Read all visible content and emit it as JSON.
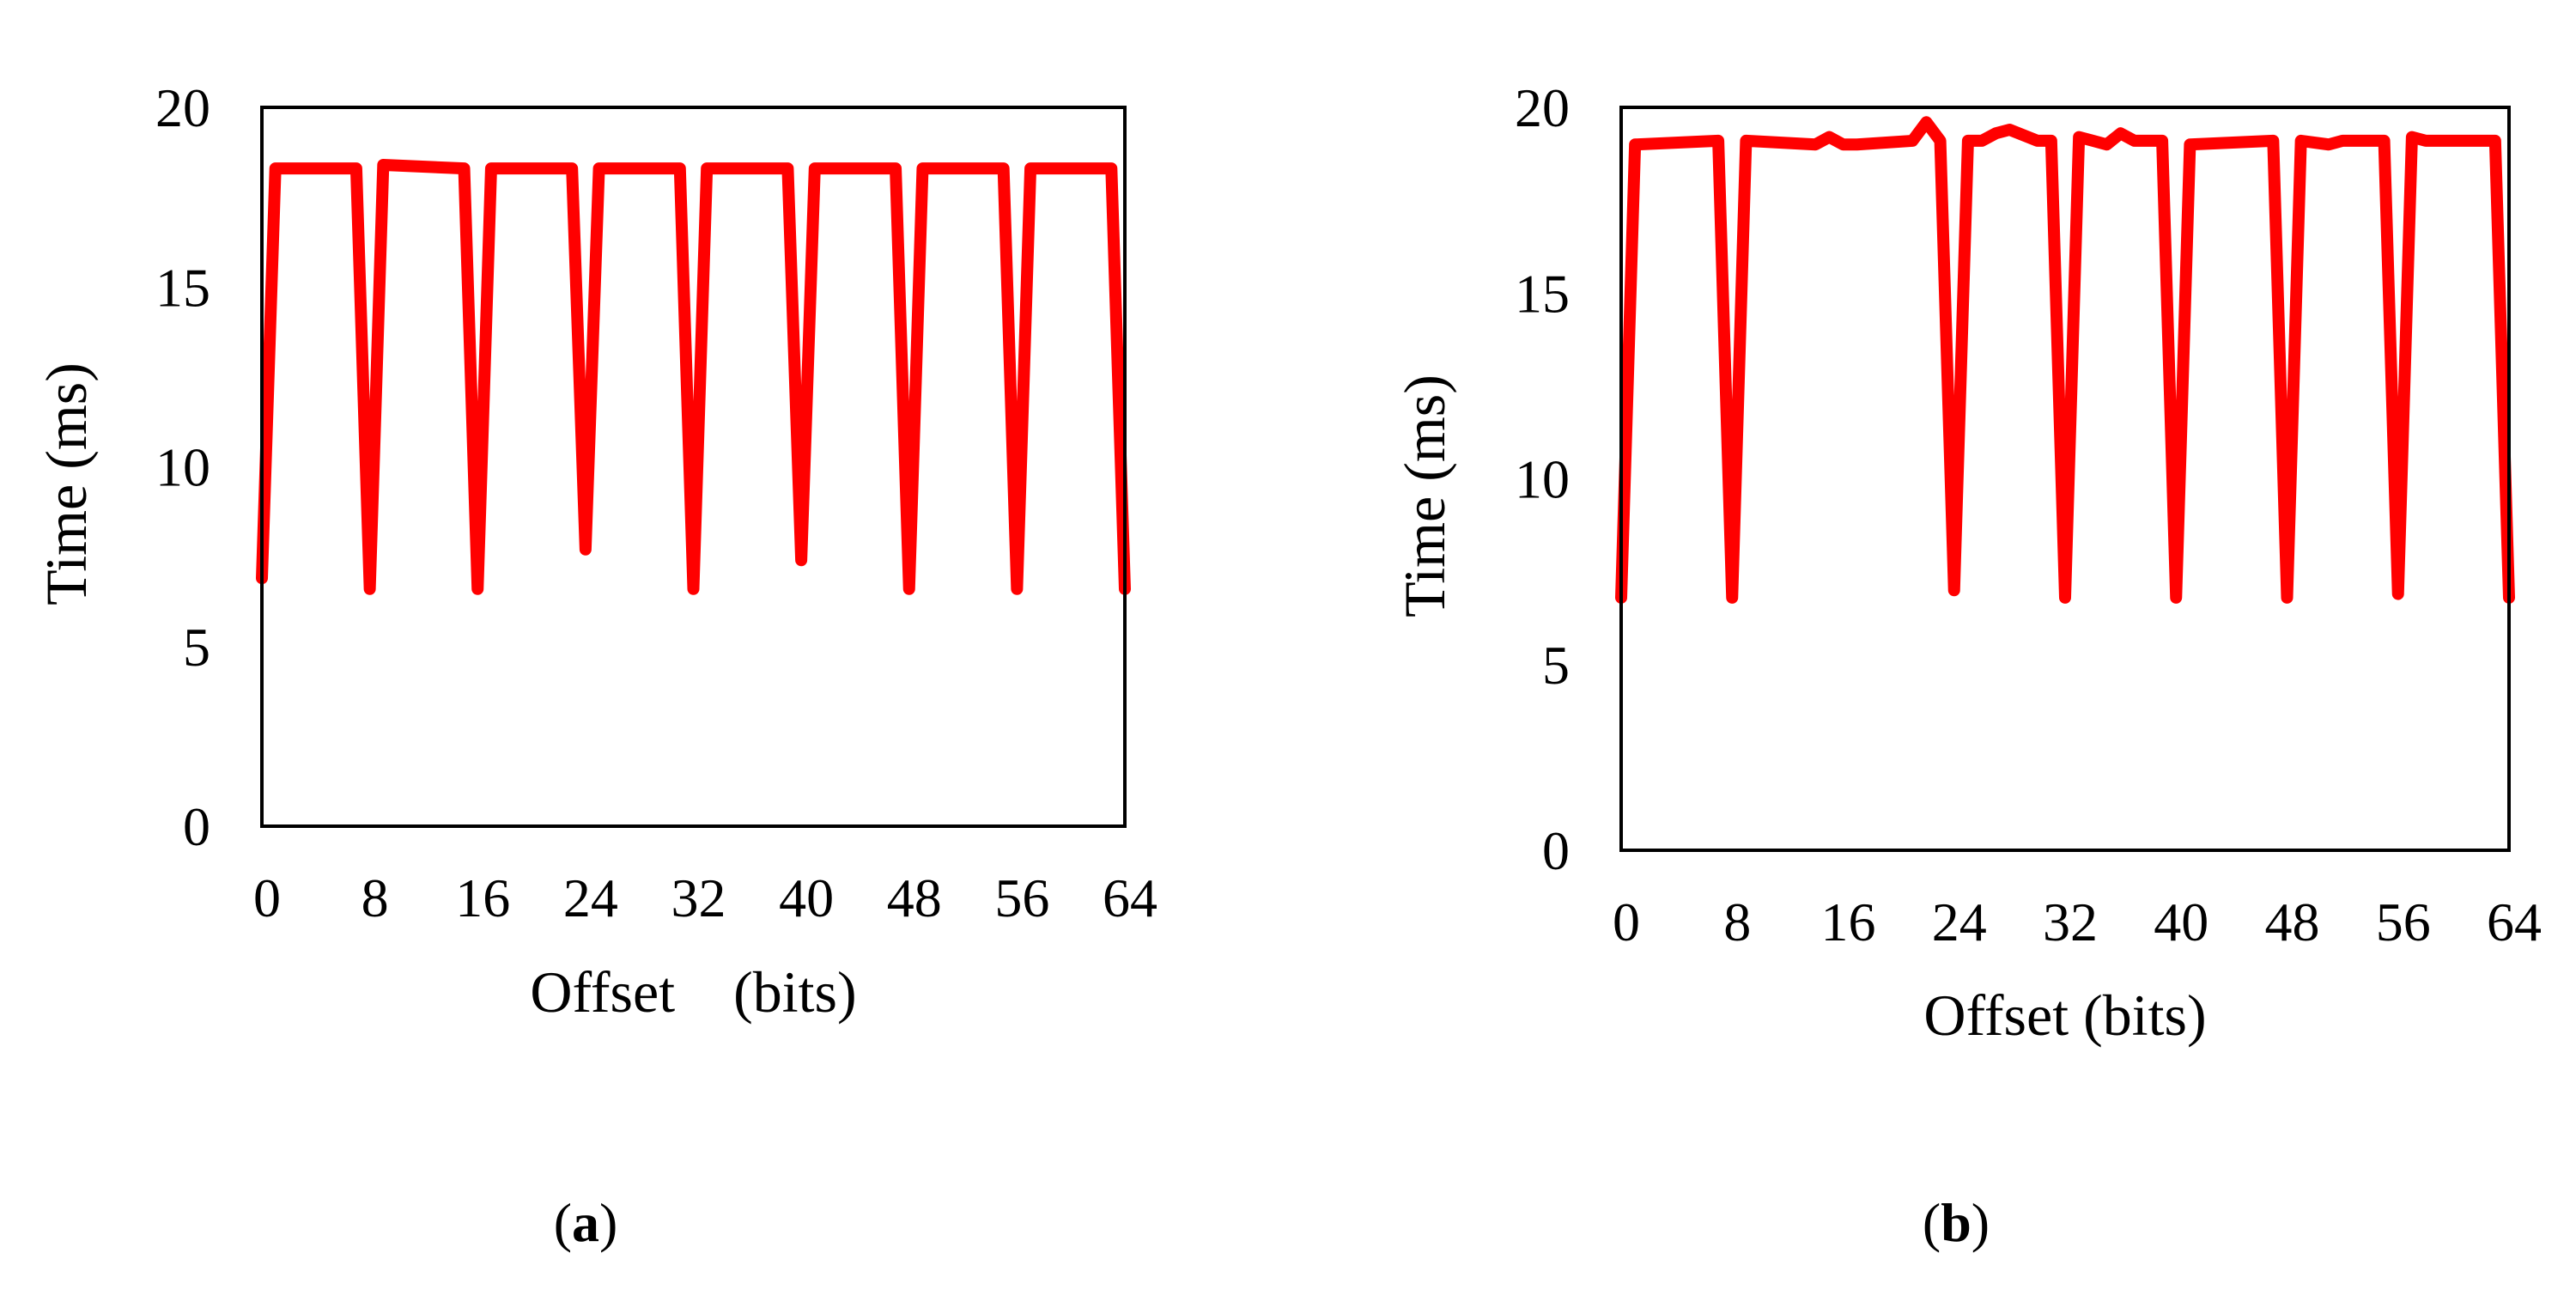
{
  "chart_data": [
    {
      "panel": "a",
      "panel_label": {
        "open": "(",
        "letter": "a",
        "close": ")"
      },
      "type": "line",
      "title": "",
      "xlabel": "Offset　(bits)",
      "ylabel": "Time (ms)",
      "xlim": [
        0,
        64
      ],
      "ylim": [
        0,
        20
      ],
      "xticks": [
        0,
        8,
        16,
        24,
        32,
        40,
        48,
        56,
        64
      ],
      "yticks": [
        0,
        5,
        10,
        15,
        20
      ],
      "grid": false,
      "color": "#ff0000",
      "series": [
        {
          "name": "Time",
          "x": [
            0,
            1,
            7,
            8,
            9,
            15,
            16,
            17,
            23,
            24,
            25,
            31,
            32,
            33,
            39,
            40,
            41,
            47,
            48,
            49,
            55,
            56,
            57,
            63,
            64
          ],
          "y": [
            6.9,
            18.3,
            18.3,
            6.6,
            18.4,
            18.3,
            6.6,
            18.3,
            18.3,
            7.7,
            18.3,
            18.3,
            6.6,
            18.3,
            18.3,
            7.4,
            18.3,
            18.3,
            6.6,
            18.3,
            18.3,
            6.6,
            18.3,
            18.3,
            6.6
          ]
        }
      ]
    },
    {
      "panel": "b",
      "panel_label": {
        "open": "(",
        "letter": "b",
        "close": ")"
      },
      "type": "line",
      "title": "",
      "xlabel": "Offset (bits)",
      "ylabel": "Time (ms)",
      "xlim": [
        0,
        64
      ],
      "ylim": [
        0,
        20
      ],
      "xticks": [
        0,
        8,
        16,
        24,
        32,
        40,
        48,
        56,
        64
      ],
      "yticks": [
        0,
        5,
        10,
        15,
        20
      ],
      "grid": false,
      "color": "#ff0000",
      "series": [
        {
          "name": "Time",
          "x": [
            0,
            1,
            7,
            8,
            9,
            14,
            15,
            16,
            17,
            21,
            22,
            23,
            24,
            25,
            26,
            27,
            28,
            30,
            31,
            32,
            33,
            34,
            35,
            36,
            37,
            39,
            40,
            41,
            47,
            48,
            49,
            51,
            52,
            55,
            56,
            57,
            58,
            63,
            64
          ],
          "y": [
            6.8,
            19.0,
            19.1,
            6.8,
            19.1,
            19.0,
            19.2,
            19.0,
            19.0,
            19.1,
            19.6,
            19.1,
            7.0,
            19.1,
            19.1,
            19.3,
            19.4,
            19.1,
            19.1,
            6.8,
            19.2,
            19.1,
            19.0,
            19.3,
            19.1,
            19.1,
            6.8,
            19.0,
            19.1,
            6.8,
            19.1,
            19.0,
            19.1,
            19.1,
            6.9,
            19.2,
            19.1,
            19.1,
            6.8
          ]
        }
      ]
    }
  ]
}
